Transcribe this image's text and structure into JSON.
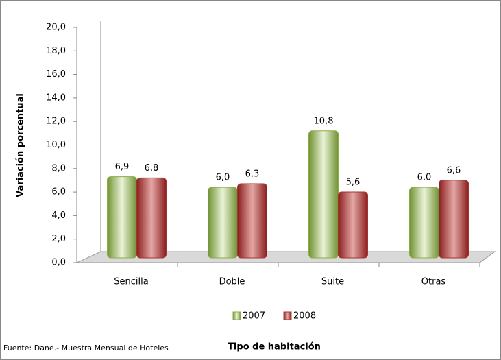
{
  "chart_data": {
    "type": "bar",
    "y_label": "Variación porcentual",
    "x_label": "Tipo de habitación",
    "source": "Fuente: Dane.- Muestra Mensual de Hoteles",
    "categories": [
      "Sencilla",
      "Doble",
      "Suite",
      "Otras"
    ],
    "series": [
      {
        "name": "2007",
        "color": "#8aad46",
        "values": [
          6.9,
          6.0,
          10.8,
          6.0
        ],
        "value_labels": [
          "6,9",
          "6,0",
          "10,8",
          "6,0"
        ]
      },
      {
        "name": "2008",
        "color": "#a8302f",
        "values": [
          6.8,
          6.3,
          5.6,
          6.6
        ],
        "value_labels": [
          "6,8",
          "6,3",
          "5,6",
          "6,6"
        ]
      }
    ],
    "ylim": [
      0,
      20
    ],
    "yticks": [
      {
        "value": 0,
        "label": "0,0"
      },
      {
        "value": 2,
        "label": "2,0"
      },
      {
        "value": 4,
        "label": "4,0"
      },
      {
        "value": 6,
        "label": "6,0"
      },
      {
        "value": 8,
        "label": "8,0"
      },
      {
        "value": 10,
        "label": "10,0"
      },
      {
        "value": 12,
        "label": "12,0"
      },
      {
        "value": 14,
        "label": "14,0"
      },
      {
        "value": 16,
        "label": "16,0"
      },
      {
        "value": 18,
        "label": "18,0"
      },
      {
        "value": 20,
        "label": "20,0"
      }
    ],
    "legend": "bottom"
  }
}
